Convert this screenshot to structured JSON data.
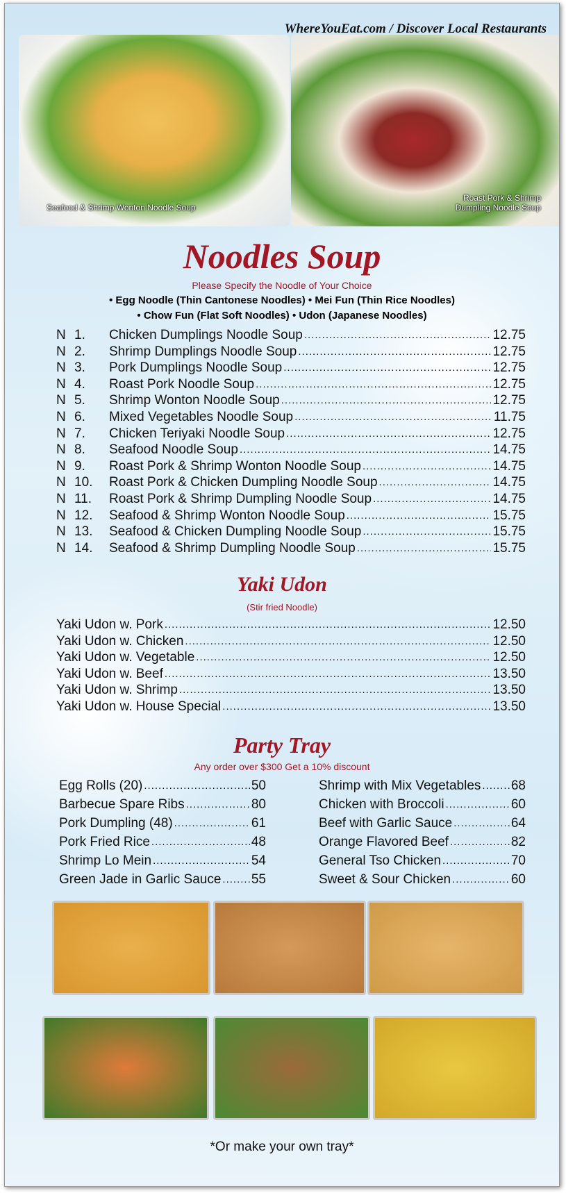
{
  "header": {
    "site": "WhereYouEat.com / Discover Local Restaurants"
  },
  "photos": [
    {
      "caption": "Seafood & Shrimp Wonton Noodle Soup"
    },
    {
      "caption": "Roast Pork & Shrimp Dumpling Noodle Soup"
    }
  ],
  "noodles": {
    "title": "Noodles Soup",
    "subtitle": "Please Specify the Noodle of Your Choice",
    "choices_line1": "• Egg Noodle (Thin Cantonese Noodles) • Mei Fun (Thin Rice Noodles)",
    "choices_line2": "• Chow Fun (Flat Soft Noodles) • Udon (Japanese Noodles)",
    "items": [
      {
        "p": "N",
        "n": "1.",
        "name": "Chicken Dumplings Noodle Soup",
        "price": "12.75"
      },
      {
        "p": "N",
        "n": "2.",
        "name": "Shrimp Dumplings Noodle Soup",
        "price": "12.75"
      },
      {
        "p": "N",
        "n": "3.",
        "name": "Pork Dumplings Noodle Soup",
        "price": "12.75"
      },
      {
        "p": "N",
        "n": "4.",
        "name": "Roast Pork Noodle Soup",
        "price": "12.75"
      },
      {
        "p": "N",
        "n": "5.",
        "name": "Shrimp Wonton Noodle Soup",
        "price": "12.75"
      },
      {
        "p": "N",
        "n": "6.",
        "name": "Mixed Vegetables Noodle Soup",
        "price": "11.75"
      },
      {
        "p": "N",
        "n": "7.",
        "name": "Chicken Teriyaki Noodle Soup",
        "price": "12.75"
      },
      {
        "p": "N",
        "n": "8.",
        "name": "Seafood Noodle Soup",
        "price": "14.75"
      },
      {
        "p": "N",
        "n": "9.",
        "name": "Roast Pork & Shrimp Wonton Noodle Soup",
        "price": "14.75"
      },
      {
        "p": "N",
        "n": "10.",
        "name": "Roast Pork & Chicken Dumpling Noodle Soup",
        "price": "14.75"
      },
      {
        "p": "N",
        "n": "11.",
        "name": "Roast Pork & Shrimp Dumpling Noodle Soup",
        "price": "14.75"
      },
      {
        "p": "N",
        "n": "12.",
        "name": "Seafood & Shrimp Wonton Noodle Soup",
        "price": "15.75"
      },
      {
        "p": "N",
        "n": "13.",
        "name": "Seafood & Chicken Dumpling Noodle Soup",
        "price": "15.75"
      },
      {
        "p": "N",
        "n": "14.",
        "name": "Seafood & Shrimp Dumpling Noodle Soup",
        "price": "15.75"
      }
    ]
  },
  "yaki": {
    "title": "Yaki Udon",
    "subtitle": "(Stir fried Noodle)",
    "items": [
      {
        "name": "Yaki Udon w. Pork",
        "price": "12.50"
      },
      {
        "name": "Yaki Udon w. Chicken",
        "price": "12.50"
      },
      {
        "name": "Yaki Udon w. Vegetable",
        "price": "12.50"
      },
      {
        "name": "Yaki Udon w. Beef",
        "price": "13.50"
      },
      {
        "name": "Yaki Udon w. Shrimp",
        "price": "13.50"
      },
      {
        "name": "Yaki Udon w. House Special",
        "price": "13.50"
      }
    ]
  },
  "party": {
    "title": "Party Tray",
    "subtitle": "Any order over $300 Get a 10% discount",
    "left": [
      {
        "name": "Egg Rolls (20)",
        "price": "50"
      },
      {
        "name": "Barbecue Spare Ribs",
        "price": "80"
      },
      {
        "name": "Pork Dumpling (48)",
        "price": "61"
      },
      {
        "name": "Pork Fried Rice",
        "price": "48"
      },
      {
        "name": "Shrimp Lo Mein",
        "price": "54"
      },
      {
        "name": "Green Jade in Garlic Sauce",
        "price": "55"
      }
    ],
    "right": [
      {
        "name": "Shrimp with Mix Vegetables",
        "price": "68"
      },
      {
        "name": "Chicken with Broccoli",
        "price": "60"
      },
      {
        "name": "Beef with Garlic Sauce",
        "price": "64"
      },
      {
        "name": "Orange Flavored Beef",
        "price": "82"
      },
      {
        "name": "General Tso Chicken",
        "price": "70"
      },
      {
        "name": "Sweet & Sour Chicken",
        "price": "60"
      }
    ],
    "footer": "*Or make your own tray*"
  },
  "colors": {
    "accent": "#a31624"
  }
}
